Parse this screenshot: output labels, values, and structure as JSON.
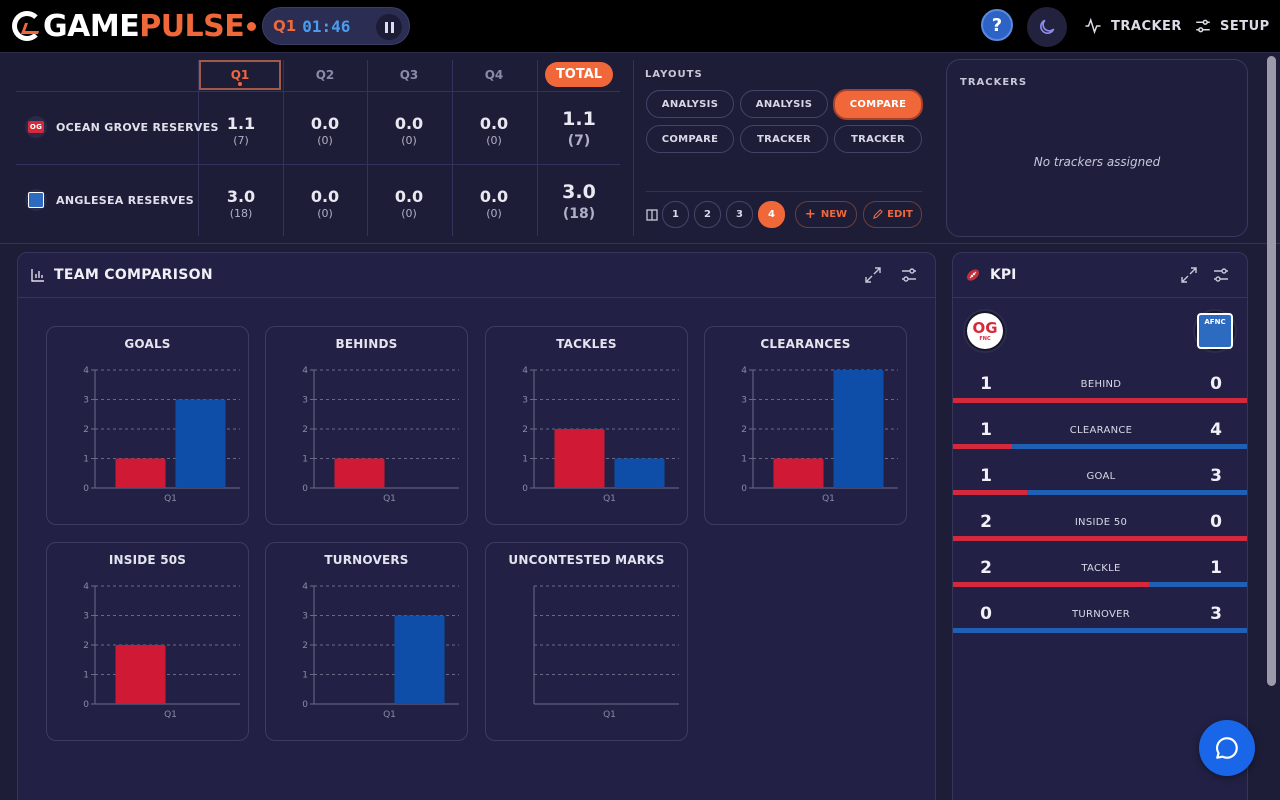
{
  "header": {
    "logo_white": "GAME",
    "logo_orange": "PULSE",
    "clock_quarter": "Q1",
    "clock_time": "01:46",
    "help_label": "?",
    "tracker_label": "TRACKER",
    "setup_label": "SETUP"
  },
  "scoreboard": {
    "quarters": [
      "Q1",
      "Q2",
      "Q3",
      "Q4"
    ],
    "active_quarter": "Q1",
    "total_label": "TOTAL",
    "teams": [
      {
        "name": "OCEAN GROVE RESERVES",
        "badge": "OG",
        "quarters": [
          {
            "score": "1.1",
            "points": "(7)"
          },
          {
            "score": "0.0",
            "points": "(0)"
          },
          {
            "score": "0.0",
            "points": "(0)"
          },
          {
            "score": "0.0",
            "points": "(0)"
          }
        ],
        "total": {
          "score": "1.1",
          "points": "(7)"
        }
      },
      {
        "name": "ANGLESEA RESERVES",
        "badge": "AFNC",
        "quarters": [
          {
            "score": "3.0",
            "points": "(18)"
          },
          {
            "score": "0.0",
            "points": "(0)"
          },
          {
            "score": "0.0",
            "points": "(0)"
          },
          {
            "score": "0.0",
            "points": "(0)"
          }
        ],
        "total": {
          "score": "3.0",
          "points": "(18)"
        }
      }
    ]
  },
  "layouts": {
    "title": "LAYOUTS",
    "buttons": [
      "ANALYSIS",
      "ANALYSIS",
      "COMPARE",
      "COMPARE",
      "TRACKER",
      "TRACKER"
    ],
    "active_index": 2,
    "pages": [
      "1",
      "2",
      "3",
      "4"
    ],
    "active_page": "4",
    "new_label": "NEW",
    "edit_label": "EDIT"
  },
  "trackers": {
    "title": "TRACKERS",
    "empty_text": "No trackers assigned"
  },
  "team_comparison": {
    "title": "TEAM COMPARISON"
  },
  "chart_data": [
    {
      "type": "bar",
      "title": "GOALS",
      "categories": [
        "Q1"
      ],
      "series": [
        {
          "values": [
            1
          ],
          "color": "#d01a35"
        },
        {
          "values": [
            3
          ],
          "color": "#0e4ea8"
        }
      ],
      "ylim": [
        0,
        4
      ],
      "yticks": [
        "0",
        "1",
        "2",
        "3",
        "4"
      ],
      "grid": true
    },
    {
      "type": "bar",
      "title": "BEHINDS",
      "categories": [
        "Q1"
      ],
      "series": [
        {
          "values": [
            1
          ],
          "color": "#d01a35"
        },
        {
          "values": [
            0
          ],
          "color": "#0e4ea8"
        }
      ],
      "ylim": [
        0,
        4
      ],
      "yticks": [
        "0",
        "1",
        "2",
        "3",
        "4"
      ],
      "grid": true
    },
    {
      "type": "bar",
      "title": "TACKLES",
      "categories": [
        "Q1"
      ],
      "series": [
        {
          "values": [
            2
          ],
          "color": "#d01a35"
        },
        {
          "values": [
            1
          ],
          "color": "#0e4ea8"
        }
      ],
      "ylim": [
        0,
        4
      ],
      "yticks": [
        "0",
        "1",
        "2",
        "3",
        "4"
      ],
      "grid": true
    },
    {
      "type": "bar",
      "title": "CLEARANCES",
      "categories": [
        "Q1"
      ],
      "series": [
        {
          "values": [
            1
          ],
          "color": "#d01a35"
        },
        {
          "values": [
            4
          ],
          "color": "#0e4ea8"
        }
      ],
      "ylim": [
        0,
        4
      ],
      "yticks": [
        "0",
        "1",
        "2",
        "3",
        "4"
      ],
      "grid": true
    },
    {
      "type": "bar",
      "title": "INSIDE 50S",
      "categories": [
        "Q1"
      ],
      "series": [
        {
          "values": [
            2
          ],
          "color": "#d01a35"
        },
        {
          "values": [
            0
          ],
          "color": "#0e4ea8"
        }
      ],
      "ylim": [
        0,
        4
      ],
      "yticks": [
        "0",
        "1",
        "2",
        "3",
        "4"
      ],
      "grid": true
    },
    {
      "type": "bar",
      "title": "TURNOVERS",
      "categories": [
        "Q1"
      ],
      "series": [
        {
          "values": [
            0
          ],
          "color": "#d01a35"
        },
        {
          "values": [
            3
          ],
          "color": "#0e4ea8"
        }
      ],
      "ylim": [
        0,
        4
      ],
      "yticks": [
        "0",
        "1",
        "2",
        "3",
        "4"
      ],
      "grid": true
    },
    {
      "type": "bar",
      "title": "UNCONTESTED MARKS",
      "categories": [
        "Q1"
      ],
      "series": [
        {
          "values": [
            0
          ],
          "color": "#d01a35"
        },
        {
          "values": [
            0
          ],
          "color": "#0e4ea8"
        }
      ],
      "ylim": [
        0,
        4
      ],
      "yticks": [],
      "grid": true
    }
  ],
  "kpi": {
    "title": "KPI",
    "home_logo": "OG",
    "home_logo_sub": "FNC",
    "away_logo": "AFNC",
    "rows": [
      {
        "label": "BEHIND",
        "home": 1,
        "away": 0
      },
      {
        "label": "CLEARANCE",
        "home": 1,
        "away": 4
      },
      {
        "label": "GOAL",
        "home": 1,
        "away": 3
      },
      {
        "label": "INSIDE 50",
        "home": 2,
        "away": 0
      },
      {
        "label": "TACKLE",
        "home": 2,
        "away": 1
      },
      {
        "label": "TURNOVER",
        "home": 0,
        "away": 3
      }
    ]
  },
  "colors": {
    "accent": "#f0683a",
    "home": "#d01a35",
    "away": "#0e4ea8",
    "clock": "#4a9cf0"
  }
}
